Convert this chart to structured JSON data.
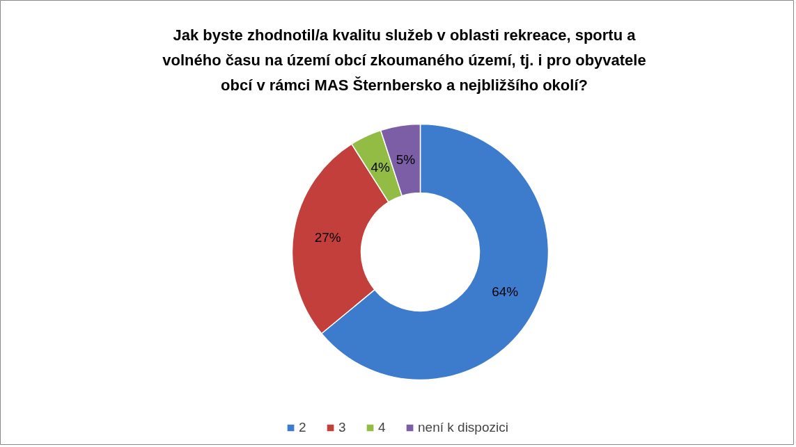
{
  "chart_data": {
    "type": "donut",
    "title": "Jak byste zhodnotil/a kvalitu služeb v oblasti rekreace, sportu a volného času na území obcí zkoumaného území, tj. i pro obyvatele obcí v rámci MAS Šternbersko a nejbližšího okolí?",
    "categories": [
      "2",
      "3",
      "4",
      "není k dispozici"
    ],
    "values": [
      64,
      27,
      4,
      5
    ],
    "colors": [
      "#3d7bcc",
      "#c23f3b",
      "#93bc45",
      "#7b5ea6"
    ],
    "value_labels": [
      "64%",
      "27%",
      "4%",
      "5%"
    ],
    "legend": "bottom"
  }
}
